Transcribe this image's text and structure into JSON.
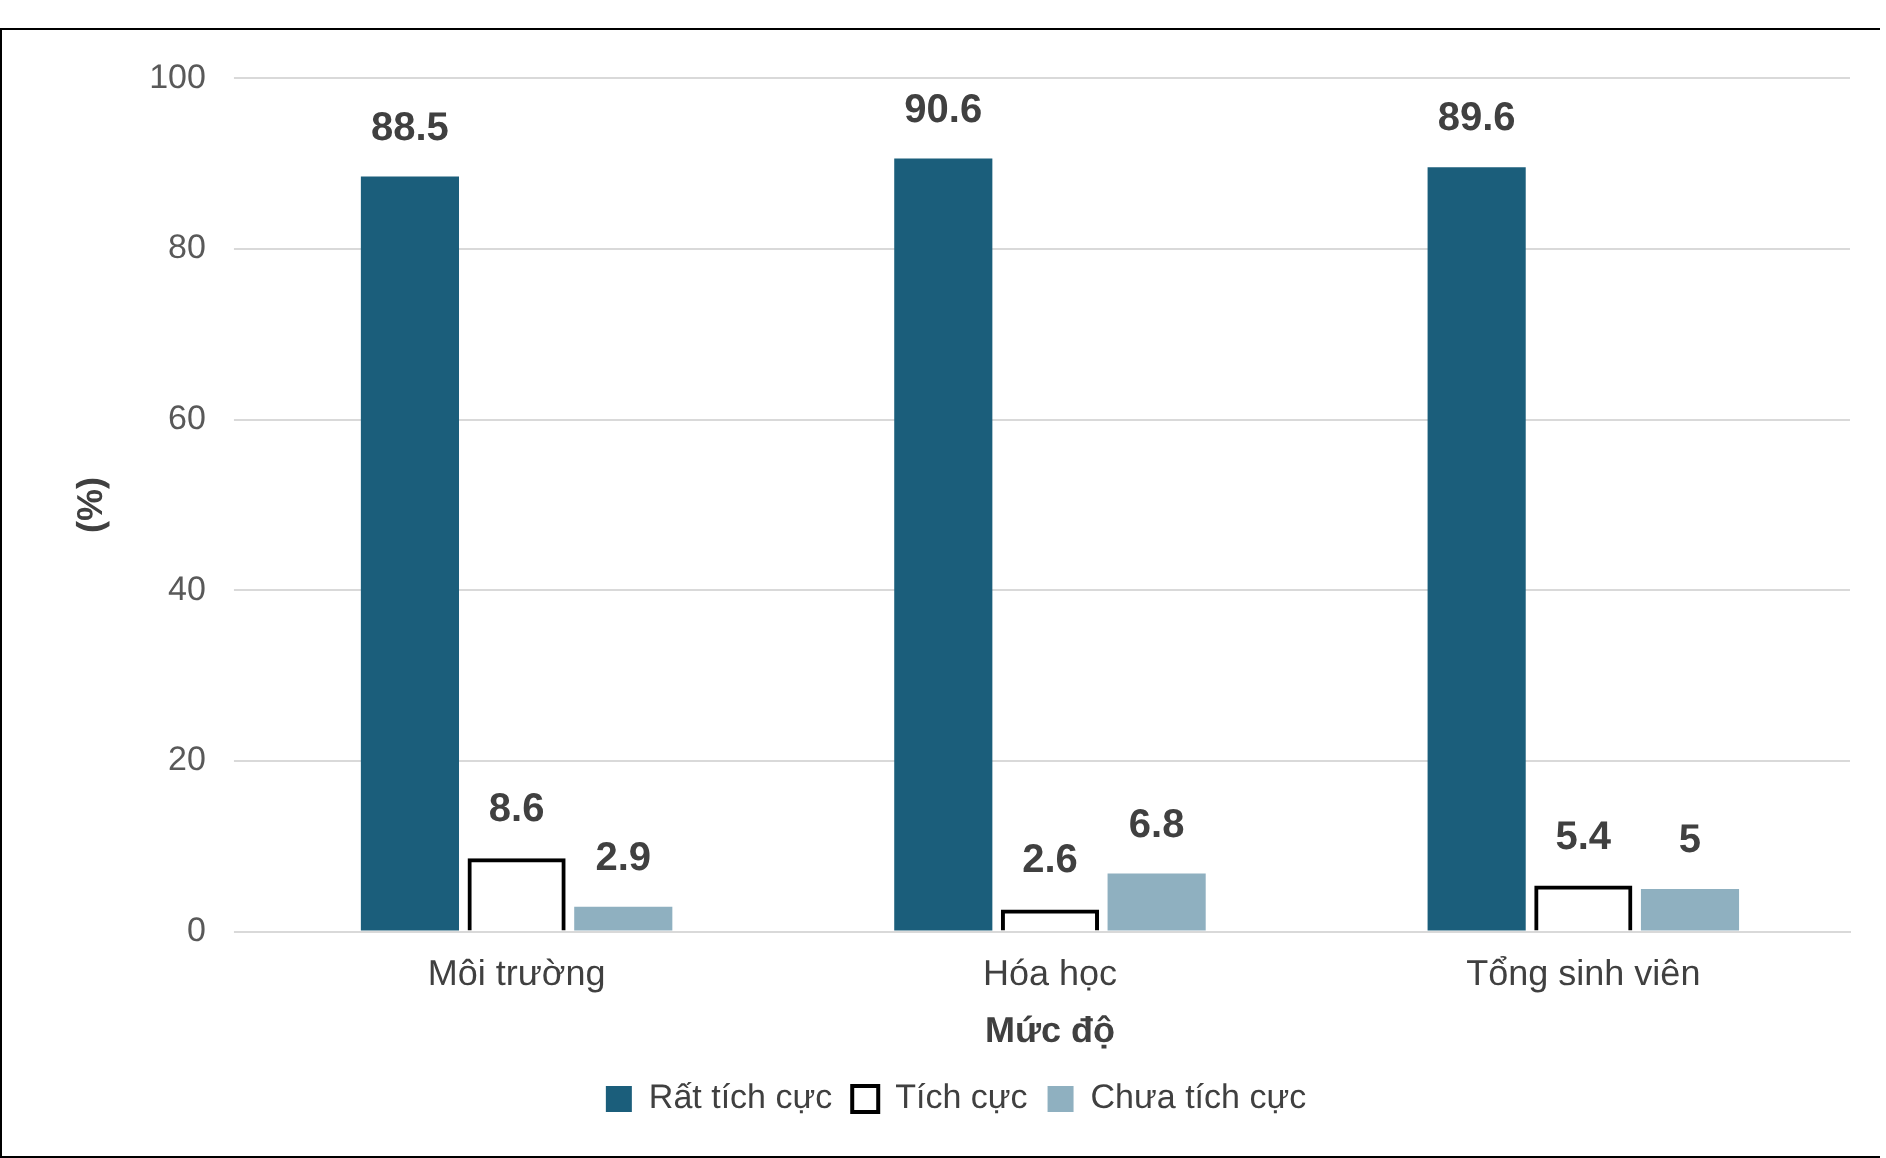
{
  "chart_data": {
    "type": "bar",
    "xlabel": "Mức độ",
    "ylabel": "(%)",
    "categories": [
      "Môi trường",
      "Hóa học",
      "Tổng sinh viên"
    ],
    "series": [
      {
        "name": "Rất tích cực",
        "color": "#1b5e7b",
        "values": [
          88.5,
          90.6,
          89.6
        ]
      },
      {
        "name": "Tích cực",
        "color": "#000000",
        "values": [
          8.6,
          2.6,
          5.4
        ]
      },
      {
        "name": "Chưa tích cực",
        "color": "#8fb0c0",
        "values": [
          2.9,
          6.8,
          5
        ]
      }
    ],
    "ylim": [
      0,
      100
    ],
    "yticks": [
      0,
      20,
      40,
      60,
      80,
      100
    ],
    "grid": "y",
    "legend": "bottom",
    "data_labels": true
  }
}
